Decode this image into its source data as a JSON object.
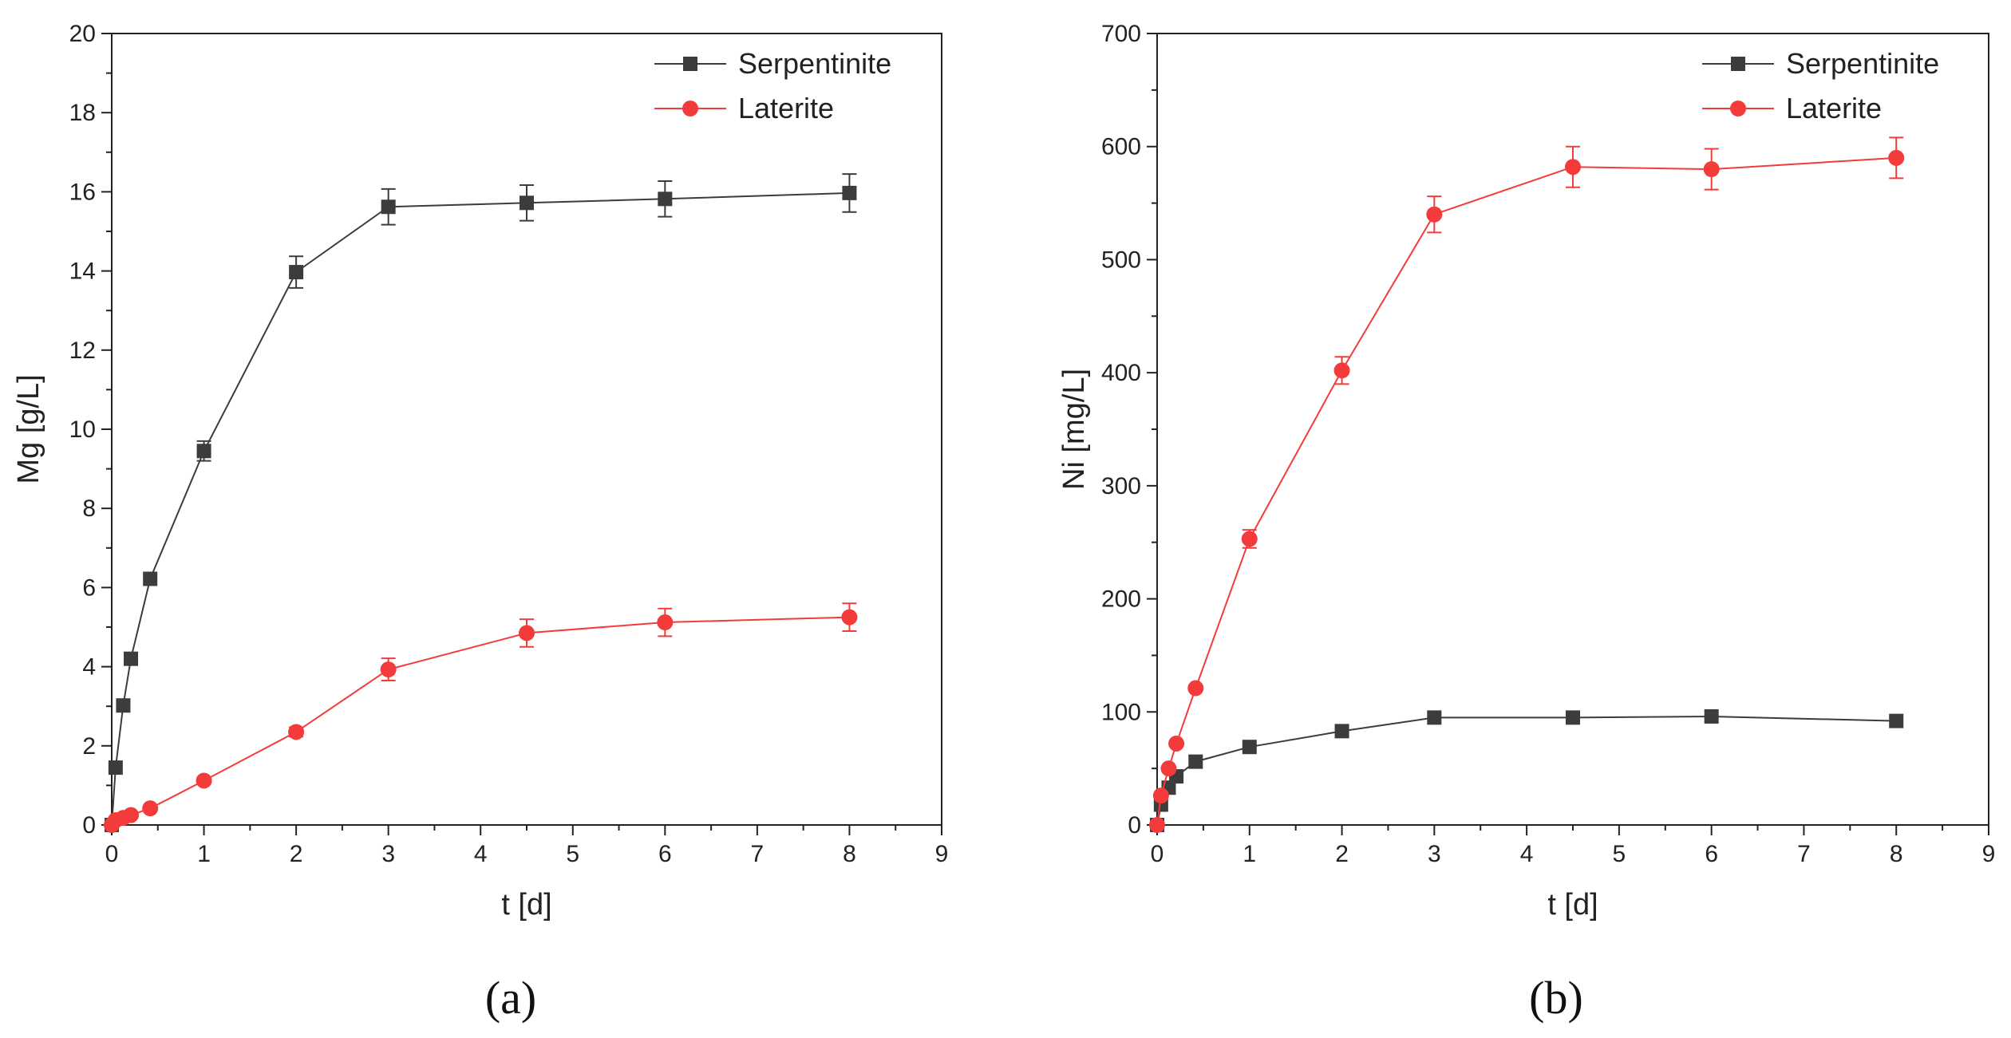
{
  "chart_data": [
    {
      "type": "line",
      "title": "",
      "panel_label": "(a)",
      "xlabel": "t [d]",
      "ylabel": "Mg [g/L]",
      "xlim": [
        0,
        9
      ],
      "ylim": [
        0,
        20
      ],
      "xticks": [
        0,
        1,
        2,
        3,
        4,
        5,
        6,
        7,
        8,
        9
      ],
      "yticks": [
        0,
        2,
        4,
        6,
        8,
        10,
        12,
        14,
        16,
        18,
        20
      ],
      "grid": false,
      "legend_position": "top-right",
      "series": [
        {
          "name": "Serpentinite",
          "color": "#3c3c3c",
          "marker": "square",
          "x": [
            0,
            0.042,
            0.125,
            0.208,
            0.417,
            1,
            2,
            3,
            4.5,
            6,
            8
          ],
          "y": [
            0,
            1.45,
            3.02,
            4.2,
            6.22,
            9.45,
            13.97,
            15.62,
            15.72,
            15.82,
            15.97
          ],
          "err": [
            0,
            0,
            0,
            0,
            0,
            0.25,
            0.4,
            0.45,
            0.45,
            0.45,
            0.48
          ]
        },
        {
          "name": "Laterite",
          "color": "#f43b3b",
          "marker": "circle",
          "x": [
            0,
            0.042,
            0.125,
            0.208,
            0.417,
            1,
            2,
            3,
            4.5,
            6,
            8
          ],
          "y": [
            0,
            0.12,
            0.18,
            0.25,
            0.42,
            1.12,
            2.35,
            3.93,
            4.85,
            5.12,
            5.25
          ],
          "err": [
            0,
            0,
            0,
            0,
            0,
            0.08,
            0.12,
            0.28,
            0.35,
            0.35,
            0.35
          ]
        }
      ]
    },
    {
      "type": "line",
      "title": "",
      "panel_label": "(b)",
      "xlabel": "t [d]",
      "ylabel": "Ni [mg/L]",
      "xlim": [
        0,
        9
      ],
      "ylim": [
        0,
        700
      ],
      "xticks": [
        0,
        1,
        2,
        3,
        4,
        5,
        6,
        7,
        8,
        9
      ],
      "yticks": [
        0,
        100,
        200,
        300,
        400,
        500,
        600,
        700
      ],
      "grid": false,
      "legend_position": "top-right",
      "series": [
        {
          "name": "Serpentinite",
          "color": "#3c3c3c",
          "marker": "square",
          "x": [
            0,
            0.042,
            0.125,
            0.208,
            0.417,
            1,
            2,
            3,
            4.5,
            6,
            8
          ],
          "y": [
            0,
            18,
            33,
            43,
            56,
            69,
            83,
            95,
            95,
            96,
            92
          ],
          "err": [
            0,
            0,
            0,
            0,
            0,
            0,
            0,
            0,
            0,
            0,
            0
          ]
        },
        {
          "name": "Laterite",
          "color": "#f43b3b",
          "marker": "circle",
          "x": [
            0,
            0.042,
            0.125,
            0.208,
            0.417,
            1,
            2,
            3,
            4.5,
            6,
            8
          ],
          "y": [
            0,
            26,
            50,
            72,
            121,
            253,
            402,
            540,
            582,
            580,
            590
          ],
          "err": [
            0,
            0,
            0,
            0,
            0,
            8,
            12,
            16,
            18,
            18,
            18
          ]
        }
      ]
    }
  ]
}
